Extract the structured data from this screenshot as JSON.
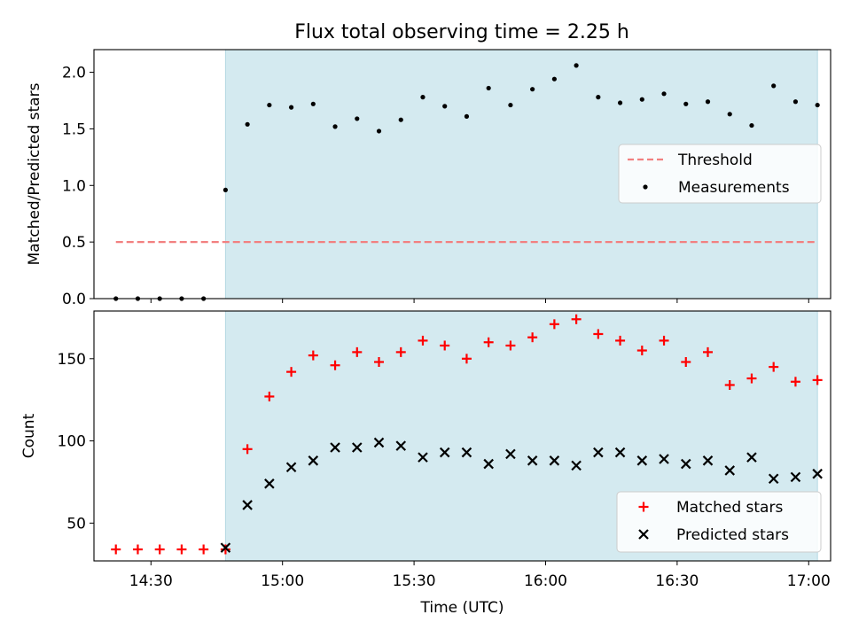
{
  "title": "Flux total observing time = 2.25 h",
  "colors": {
    "shade": "#d4eaf0",
    "shade_edge": "#b5d8e3",
    "threshold": "#f28080",
    "measurement": "#000000",
    "matched": "#ff0000",
    "predicted": "#000000"
  },
  "chart_data": [
    {
      "type": "scatter",
      "ylabel": "Matched/Predicted stars",
      "ylim": [
        0,
        2.2
      ],
      "yticks": [
        0.0,
        0.5,
        1.0,
        1.5,
        2.0
      ],
      "ytick_labels": [
        "0.0",
        "0.5",
        "1.0",
        "1.5",
        "2.0"
      ],
      "xlim": [
        "14:17",
        "17:05"
      ],
      "shaded_interval": [
        "14:47",
        "17:02"
      ],
      "legend_position": "right",
      "legend": {
        "threshold": "Threshold",
        "measurements": "Measurements"
      },
      "threshold": {
        "value": 0.5,
        "x_start": "14:22",
        "x_end": "17:02"
      },
      "series": [
        {
          "name": "Measurements",
          "marker": "dot",
          "x": [
            "14:22",
            "14:27",
            "14:32",
            "14:37",
            "14:42",
            "14:47",
            "14:52",
            "14:57",
            "15:02",
            "15:07",
            "15:12",
            "15:17",
            "15:22",
            "15:27",
            "15:32",
            "15:37",
            "15:42",
            "15:47",
            "15:52",
            "15:57",
            "16:02",
            "16:07",
            "16:12",
            "16:17",
            "16:22",
            "16:27",
            "16:32",
            "16:37",
            "16:42",
            "16:47",
            "16:52",
            "16:57",
            "17:02"
          ],
          "y": [
            0.0,
            0.0,
            0.0,
            0.0,
            0.0,
            0.96,
            1.54,
            1.71,
            1.69,
            1.72,
            1.52,
            1.59,
            1.48,
            1.58,
            1.78,
            1.7,
            1.61,
            1.86,
            1.71,
            1.85,
            1.94,
            2.06,
            1.78,
            1.73,
            1.76,
            1.81,
            1.72,
            1.74,
            1.63,
            1.53,
            1.88,
            1.74,
            1.71
          ]
        }
      ]
    },
    {
      "type": "scatter",
      "ylabel": "Count",
      "xlabel": "Time (UTC)",
      "ylim": [
        27,
        179
      ],
      "yticks": [
        50,
        100,
        150
      ],
      "ytick_labels": [
        "50",
        "100",
        "150"
      ],
      "xlim": [
        "14:17",
        "17:05"
      ],
      "xticks": [
        "14:30",
        "15:00",
        "15:30",
        "16:00",
        "16:30",
        "17:00"
      ],
      "shaded_interval": [
        "14:47",
        "17:02"
      ],
      "legend_position": "lower right",
      "series": [
        {
          "name": "Matched stars",
          "marker": "plus",
          "x": [
            "14:22",
            "14:27",
            "14:32",
            "14:37",
            "14:42",
            "14:47",
            "14:52",
            "14:57",
            "15:02",
            "15:07",
            "15:12",
            "15:17",
            "15:22",
            "15:27",
            "15:32",
            "15:37",
            "15:42",
            "15:47",
            "15:52",
            "15:57",
            "16:02",
            "16:07",
            "16:12",
            "16:17",
            "16:22",
            "16:27",
            "16:32",
            "16:37",
            "16:42",
            "16:47",
            "16:52",
            "16:57",
            "17:02"
          ],
          "y": [
            34,
            34,
            34,
            34,
            34,
            34,
            95,
            127,
            142,
            152,
            146,
            154,
            148,
            154,
            161,
            158,
            150,
            160,
            158,
            163,
            171,
            174,
            165,
            161,
            155,
            161,
            148,
            154,
            134,
            138,
            145,
            136,
            137
          ]
        },
        {
          "name": "Predicted stars",
          "marker": "x",
          "x": [
            "14:47",
            "14:52",
            "14:57",
            "15:02",
            "15:07",
            "15:12",
            "15:17",
            "15:22",
            "15:27",
            "15:32",
            "15:37",
            "15:42",
            "15:47",
            "15:52",
            "15:57",
            "16:02",
            "16:07",
            "16:12",
            "16:17",
            "16:22",
            "16:27",
            "16:32",
            "16:37",
            "16:42",
            "16:47",
            "16:52",
            "16:57",
            "17:02"
          ],
          "y": [
            35,
            61,
            74,
            84,
            88,
            96,
            96,
            99,
            97,
            90,
            93,
            93,
            86,
            92,
            88,
            88,
            85,
            93,
            93,
            88,
            89,
            86,
            88,
            82,
            90,
            77,
            78,
            80
          ]
        }
      ]
    }
  ]
}
